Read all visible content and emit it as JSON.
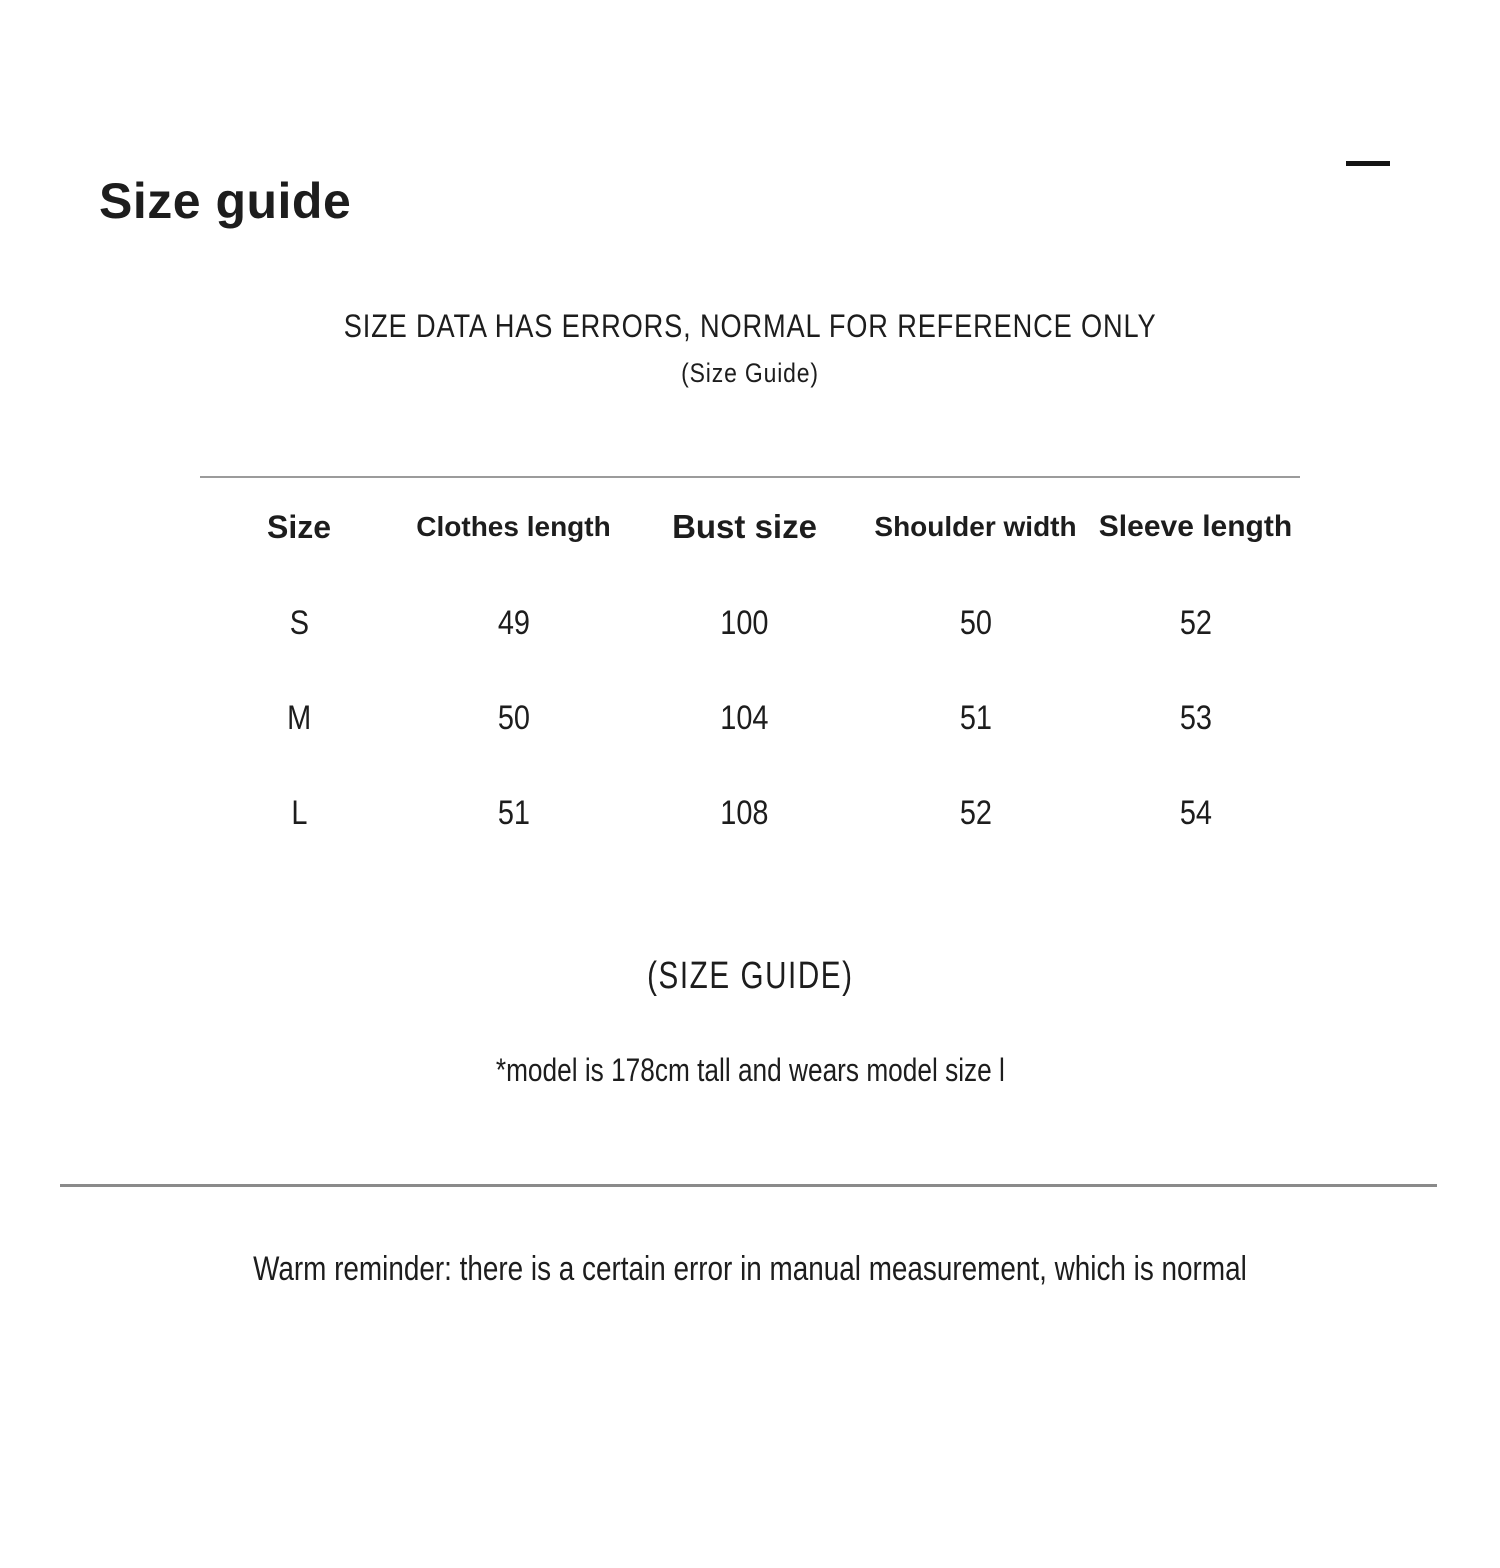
{
  "header": {
    "title": "Size guide",
    "collapse_icon": "minus"
  },
  "notice": {
    "line1": "SIZE DATA HAS ERRORS, NORMAL FOR REFERENCE ONLY",
    "line2": "(Size Guide)"
  },
  "size_table": {
    "columns": [
      "Size",
      "Clothes length",
      "Bust size",
      "Shoulder width",
      "Sleeve length"
    ],
    "rows": [
      {
        "cells": [
          "S",
          "49",
          "100",
          "50",
          "52"
        ]
      },
      {
        "cells": [
          "M",
          "50",
          "104",
          "51",
          "53"
        ]
      },
      {
        "cells": [
          "L",
          "51",
          "108",
          "52",
          "54"
        ]
      }
    ]
  },
  "caption": "(SIZE GUIDE)",
  "model_note": "*model is 178cm tall and wears model size l",
  "reminder": "Warm reminder: there is a certain error in manual measurement, which is normal",
  "colors": {
    "text": "#1d1d1d",
    "table_rule": "#9b9b9b",
    "divider": "#8a8a8a"
  }
}
